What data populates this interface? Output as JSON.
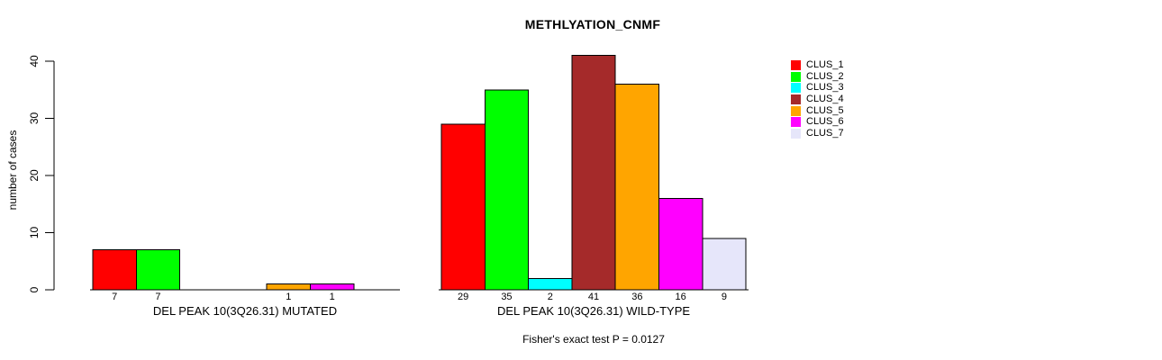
{
  "title": "METHLYATION_CNMF",
  "y_axis": {
    "label": "number of cases",
    "ticks": [
      0,
      10,
      20,
      30,
      40
    ]
  },
  "footnote": "Fisher's exact test P = 0.0127",
  "chart_data": {
    "type": "bar",
    "title": "METHLYATION_CNMF",
    "xlabel": "",
    "ylabel": "number of cases",
    "ylim": [
      0,
      40
    ],
    "yticks": [
      0,
      10,
      20,
      30,
      40
    ],
    "grid": false,
    "legend_position": "right-inside",
    "categories": [
      "DEL PEAK 10(3Q26.31) MUTATED",
      "DEL PEAK 10(3Q26.31) WILD-TYPE"
    ],
    "series": [
      {
        "name": "CLUS_1",
        "color": "#ff0000",
        "values": [
          7,
          29
        ]
      },
      {
        "name": "CLUS_2",
        "color": "#00ff00",
        "values": [
          7,
          35
        ]
      },
      {
        "name": "CLUS_3",
        "color": "#00ffff",
        "values": [
          0,
          2
        ]
      },
      {
        "name": "CLUS_4",
        "color": "#a52a2a",
        "values": [
          0,
          41
        ]
      },
      {
        "name": "CLUS_5",
        "color": "#ffa500",
        "values": [
          1,
          36
        ]
      },
      {
        "name": "CLUS_6",
        "color": "#ff00ff",
        "values": [
          1,
          16
        ]
      },
      {
        "name": "CLUS_7",
        "color": "#e6e6fa",
        "values": [
          0,
          9
        ]
      }
    ],
    "bar_value_labels": "values shown under each bar, omitted when value is 0",
    "annotation": "Fisher's exact test P = 0.0127"
  }
}
